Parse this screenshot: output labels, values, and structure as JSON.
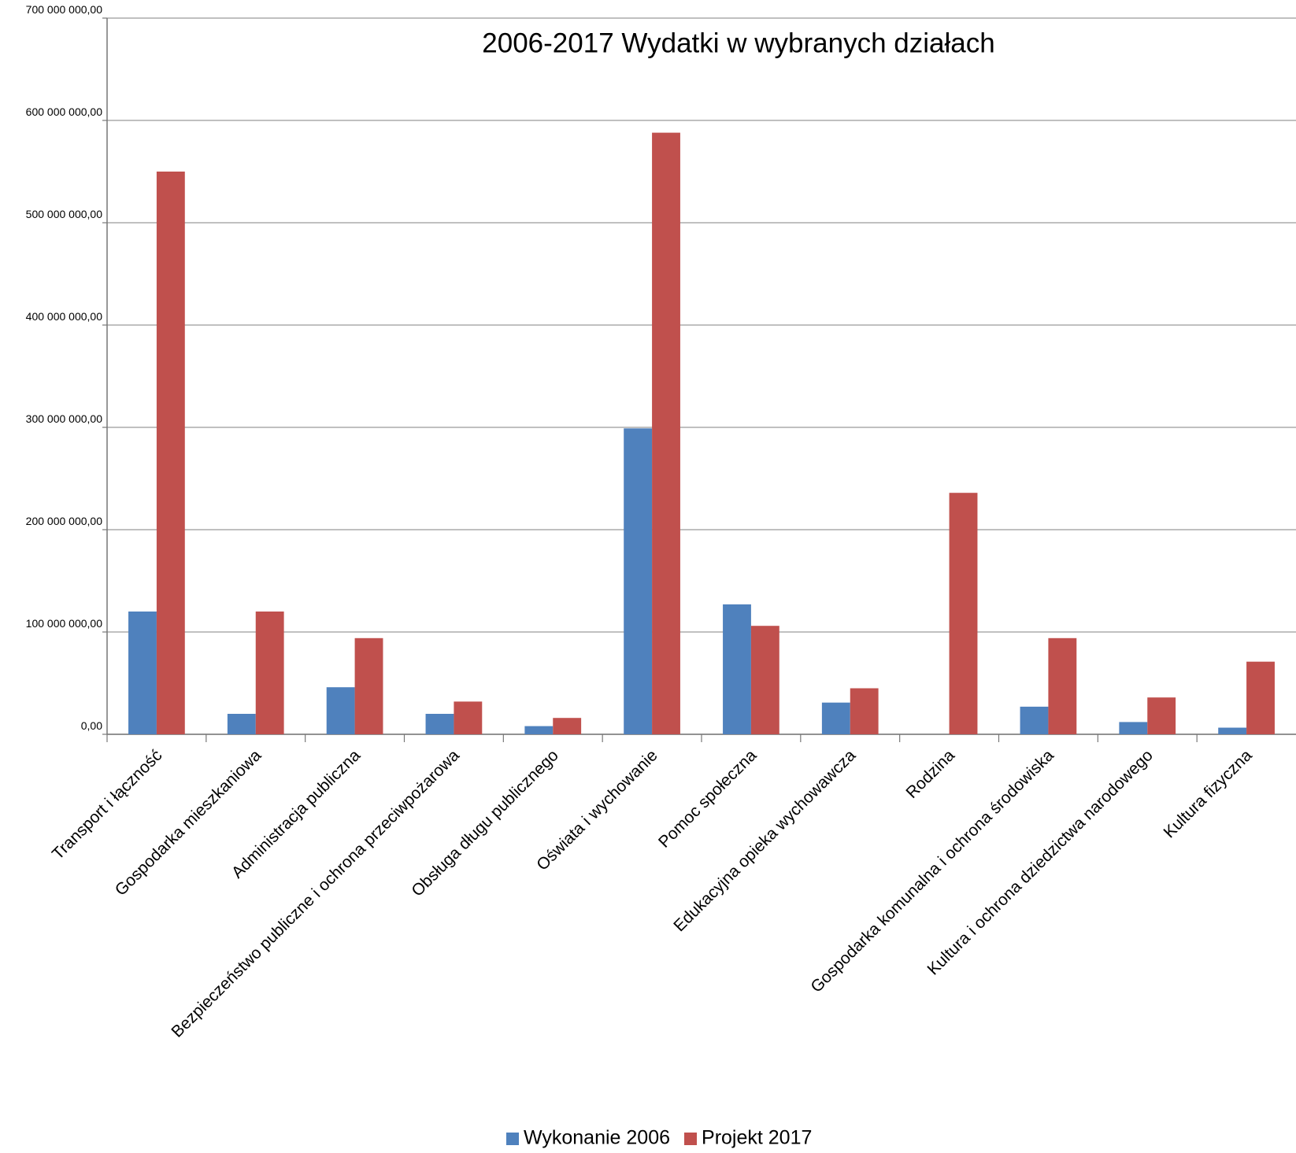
{
  "chart_data": {
    "type": "bar",
    "title": "2006-2017 Wydatki w wybranych działach",
    "categories": [
      "Transport i łączność",
      "Gospodarka mieszkaniowa",
      "Administracja publiczna",
      "Bezpieczeństwo publiczne i ochrona przeciwpożarowa",
      "Obsługa długu publicznego",
      "Oświata i wychowanie",
      "Pomoc społeczna",
      "Edukacyjna opieka wychowawcza",
      "Rodzina",
      "Gospodarka komunalna i ochrona środowiska",
      "Kultura i ochrona dziedzictwa narodowego",
      "Kultura fizyczna"
    ],
    "series": [
      {
        "name": "Wykonanie 2006",
        "color": "#4f81bd",
        "values": [
          120000000,
          20000000,
          46000000,
          20000000,
          8000000,
          299000000,
          127000000,
          31000000,
          null,
          27000000,
          12000000,
          6500000
        ]
      },
      {
        "name": "Projekt 2017",
        "color": "#c0504d",
        "values": [
          550000000,
          120000000,
          94000000,
          32000000,
          16000000,
          588000000,
          106000000,
          45000000,
          236000000,
          94000000,
          36000000,
          71000000
        ]
      }
    ],
    "ylim": [
      0,
      700000000
    ],
    "yticks": [
      {
        "value": 0,
        "label": "0,00"
      },
      {
        "value": 100000000,
        "label": "100 000 000,00"
      },
      {
        "value": 200000000,
        "label": "200 000 000,00"
      },
      {
        "value": 300000000,
        "label": "300 000 000,00"
      },
      {
        "value": 400000000,
        "label": "400 000 000,00"
      },
      {
        "value": 500000000,
        "label": "500 000 000,00"
      },
      {
        "value": 600000000,
        "label": "600 000 000,00"
      },
      {
        "value": 700000000,
        "label": "700 000 000,00"
      }
    ],
    "grid": true,
    "legend": "bottom"
  }
}
